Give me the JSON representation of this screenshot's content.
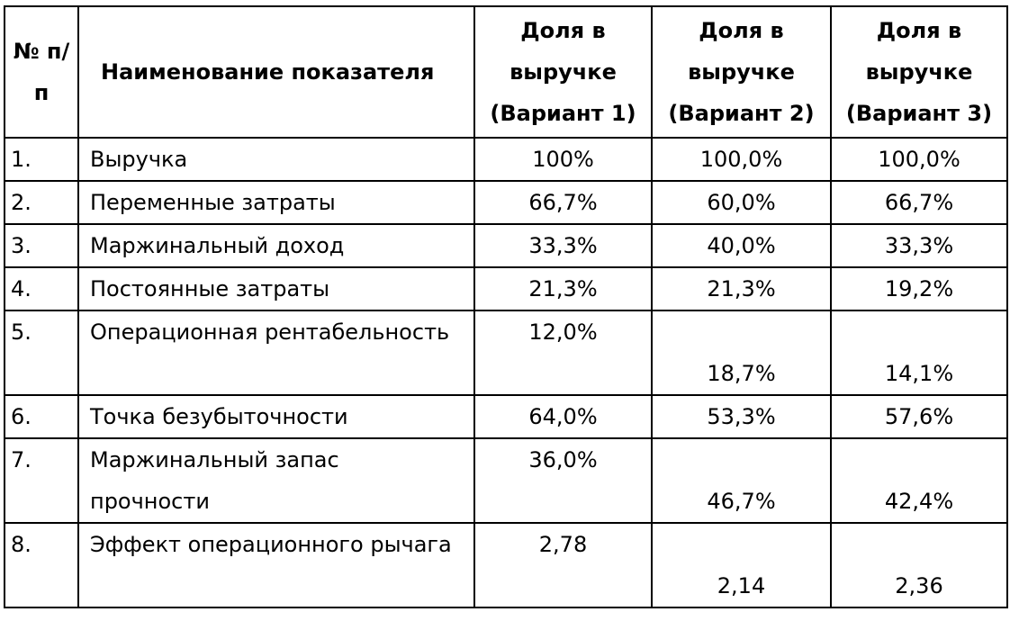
{
  "table": {
    "headers": {
      "num": "№ п/п",
      "name": "Наименование показателя",
      "v1": "Доля в выручке (Вариант 1)",
      "v2": "Доля в выручке (Вариант 2)",
      "v3": "Доля в выручке (Вариант 3)"
    },
    "rows": [
      {
        "num": "1.",
        "name": "Выручка",
        "v1": "100%",
        "v2": "100,0%",
        "v3": "100,0%"
      },
      {
        "num": "2.",
        "name": "Переменные затраты",
        "v1": "66,7%",
        "v2": "60,0%",
        "v3": "66,7%"
      },
      {
        "num": "3.",
        "name": "Маржинальный доход",
        "v1": "33,3%",
        "v2": "40,0%",
        "v3": "33,3%"
      },
      {
        "num": "4.",
        "name": "Постоянные затраты",
        "v1": "21,3%",
        "v2": "21,3%",
        "v3": "19,2%"
      },
      {
        "num": "5.",
        "name": "Операционная рентабельность",
        "v1": "12,0%",
        "v2": "18,7%",
        "v3": "14,1%"
      },
      {
        "num": "6.",
        "name": "Точка безубыточности",
        "v1": "64,0%",
        "v2": "53,3%",
        "v3": "57,6%"
      },
      {
        "num": "7.",
        "name": "Маржинальный запас прочности",
        "v1": "36,0%",
        "v2": "46,7%",
        "v3": "42,4%"
      },
      {
        "num": "8.",
        "name": "Эффект операционного рычага",
        "v1": "2,78",
        "v2": "2,14",
        "v3": "2,36"
      }
    ]
  }
}
